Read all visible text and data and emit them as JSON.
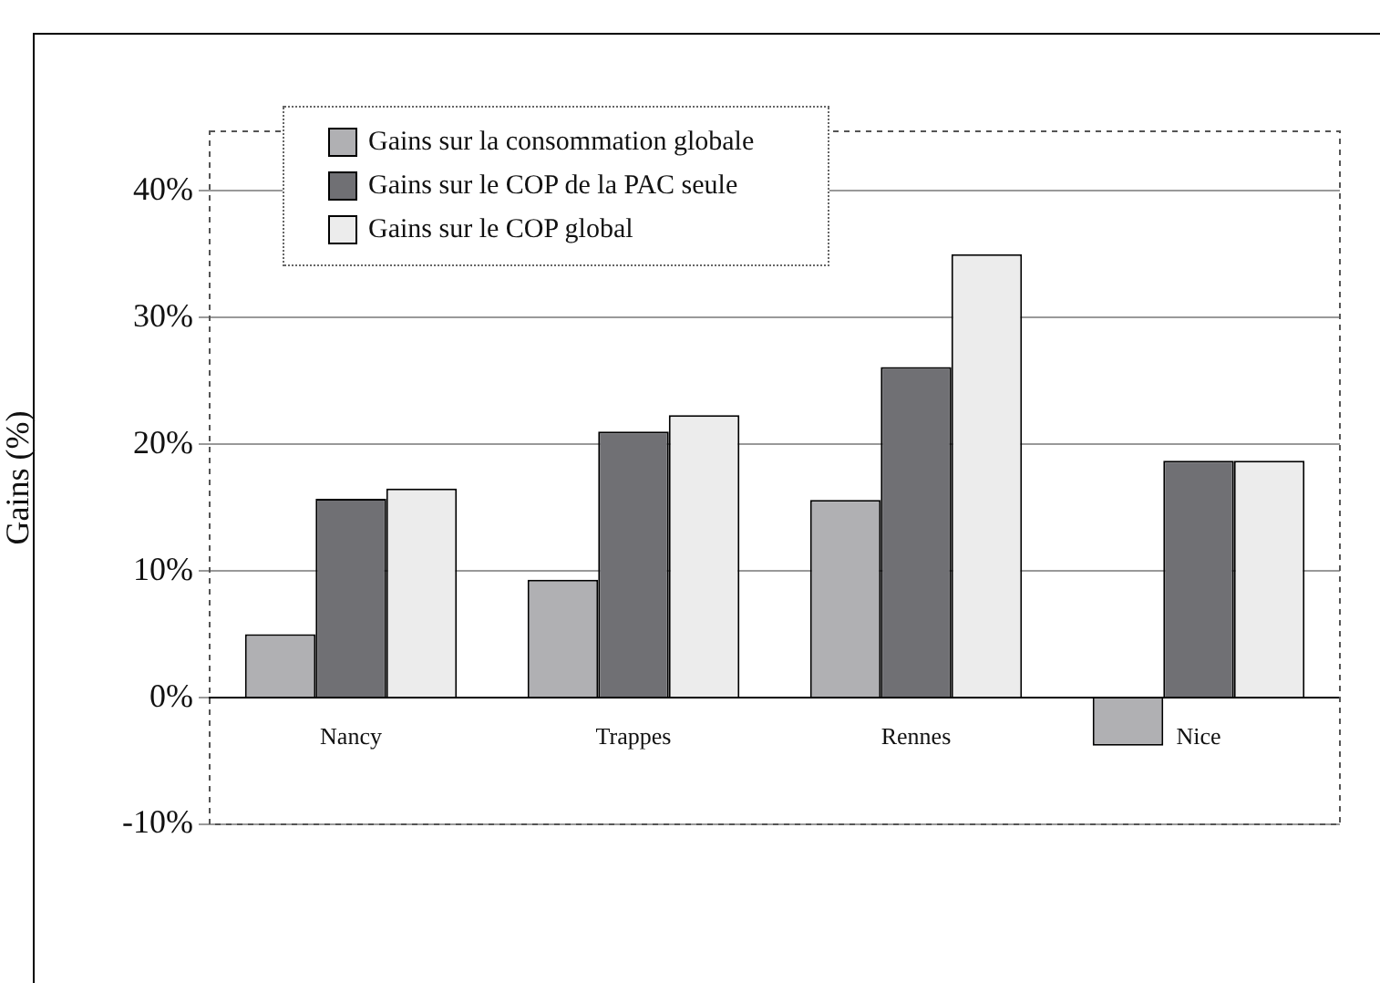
{
  "chart_data": {
    "type": "bar",
    "ylabel": "Gains (%)",
    "categories": [
      "Nancy",
      "Trappes",
      "Rennes",
      "Nice"
    ],
    "series": [
      {
        "name": "Gains sur la consommation globale",
        "color": "#b0b0b3",
        "values": [
          5.0,
          9.3,
          15.6,
          -3.8
        ]
      },
      {
        "name": "Gains sur le COP de la PAC seule",
        "color": "#707074",
        "values": [
          15.7,
          21.0,
          26.1,
          18.7
        ]
      },
      {
        "name": "Gains sur le COP global",
        "color": "#ececec",
        "values": [
          16.5,
          22.3,
          35.0,
          18.7
        ]
      }
    ],
    "ylim": [
      -10,
      44.7
    ],
    "yticks": [
      {
        "value": -10,
        "label": "-10%"
      },
      {
        "value": 0,
        "label": "0%"
      },
      {
        "value": 10,
        "label": "10%"
      },
      {
        "value": 20,
        "label": "20%"
      },
      {
        "value": 30,
        "label": "30%"
      },
      {
        "value": 40,
        "label": "40%"
      }
    ],
    "grid": "y",
    "legend": "top left"
  }
}
